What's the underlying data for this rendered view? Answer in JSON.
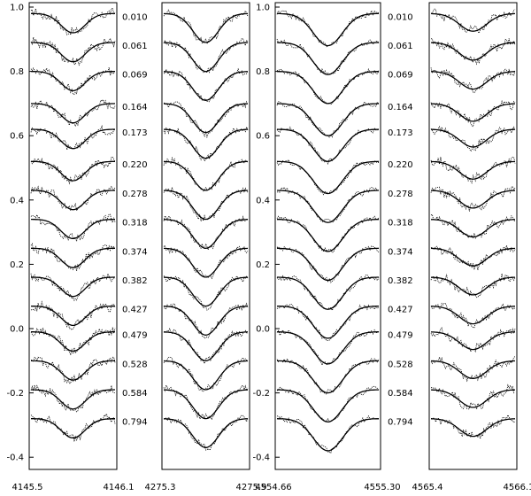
{
  "chart_data": {
    "type": "line",
    "title": "",
    "xlabel": "",
    "ylabel": "",
    "ylim": [
      -0.45,
      1.02
    ],
    "yticks": [
      "1.0",
      "0.8",
      "0.6",
      "0.4",
      "0.2",
      "0.0",
      "-0.2",
      "-0.4"
    ],
    "ytick_values": [
      1.0,
      0.8,
      0.6,
      0.4,
      0.2,
      0.0,
      -0.2,
      -0.4
    ],
    "phases": [
      "0.010",
      "0.061",
      "0.069",
      "0.164",
      "0.173",
      "0.220",
      "0.278",
      "0.318",
      "0.374",
      "0.382",
      "0.427",
      "0.479",
      "0.528",
      "0.584",
      "0.794"
    ],
    "profile_baselines": [
      0.98,
      0.89,
      0.8,
      0.7,
      0.62,
      0.52,
      0.43,
      0.34,
      0.25,
      0.16,
      0.07,
      -0.01,
      -0.1,
      -0.19,
      -0.28
    ],
    "panels": [
      {
        "xlim": [
          4145.5,
          4146.1
        ],
        "xticks": [
          "4145.5",
          "4146.1"
        ],
        "depth": 0.06,
        "width": 0.3,
        "noise": 0.012
      },
      {
        "xlim": [
          4275.3,
          4275.9
        ],
        "xticks": [
          "4275.3",
          "4275.9"
        ],
        "depth": 0.09,
        "width": 0.32,
        "noise": 0.01
      },
      {
        "xlim": [
          4554.66,
          4555.3
        ],
        "xticks": [
          "4554.66",
          "4555.30"
        ],
        "depth": 0.1,
        "width": 0.3,
        "noise": 0.008
      },
      {
        "xlim": [
          4565.4,
          4566.1
        ],
        "xticks": [
          "4565.4",
          "4566.1"
        ],
        "depth": 0.055,
        "width": 0.34,
        "noise": 0.012
      }
    ],
    "series": [
      {
        "name": "",
        "style": "solid"
      },
      {
        "name": "",
        "style": "dotted"
      }
    ]
  }
}
